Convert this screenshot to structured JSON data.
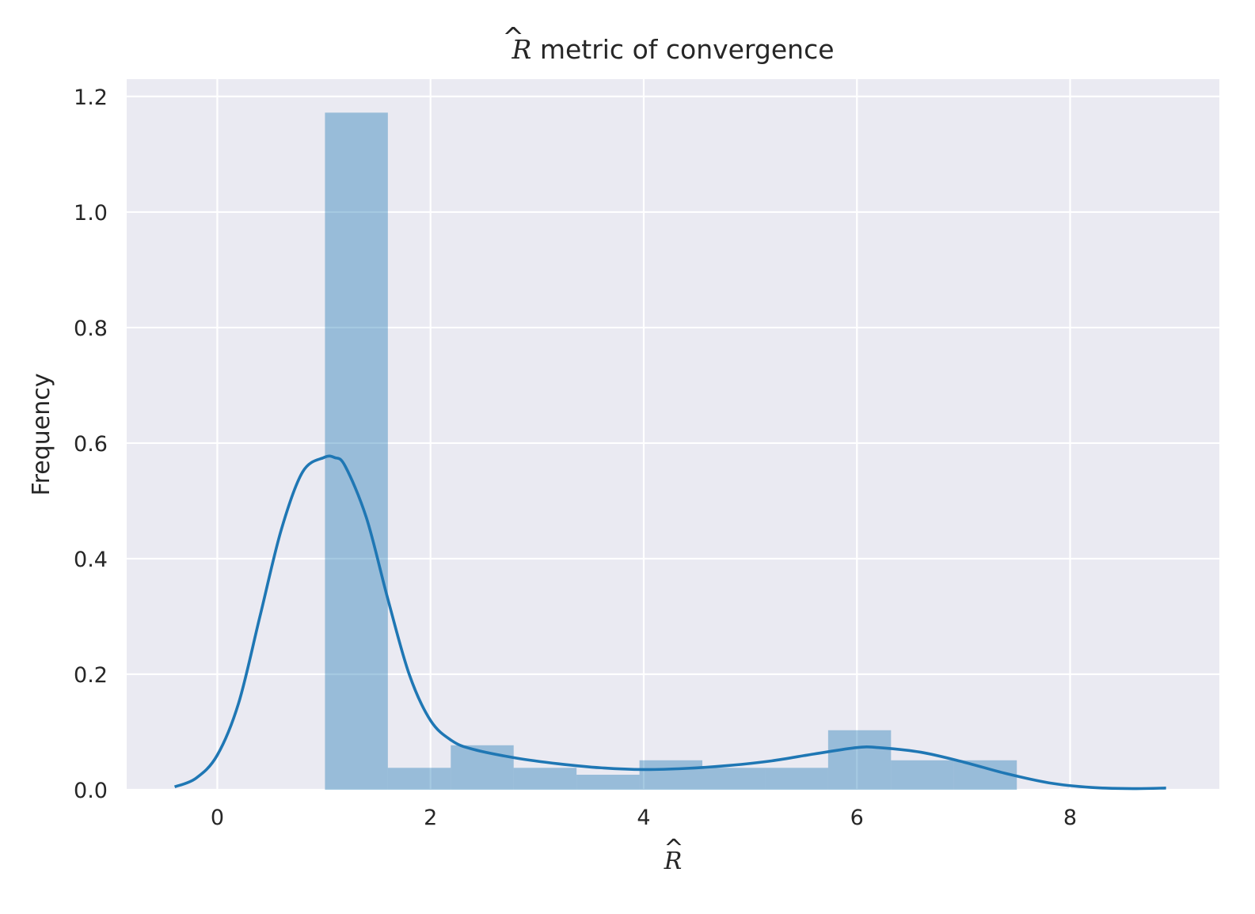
{
  "chart_data": {
    "type": "bar",
    "title_math": "R",
    "title_hat": "^",
    "title": "metric of convergence",
    "xlabel_math": "R",
    "xlabel_hat": "^",
    "ylabel": "Frequency",
    "xlim": [
      -0.85,
      9.4
    ],
    "ylim": [
      0,
      1.23
    ],
    "x_ticks": [
      0,
      2,
      4,
      6,
      8
    ],
    "y_ticks": [
      0.0,
      0.2,
      0.4,
      0.6,
      0.8,
      1.0,
      1.2
    ],
    "x_tick_labels": [
      "0",
      "2",
      "4",
      "6",
      "8"
    ],
    "y_tick_labels": [
      "0.0",
      "0.2",
      "0.4",
      "0.6",
      "0.8",
      "1.0",
      "1.2"
    ],
    "grid": true,
    "histogram": {
      "bin_edges": [
        1.01,
        1.6,
        2.19,
        2.78,
        3.37,
        3.96,
        4.55,
        5.14,
        5.73,
        6.32,
        6.91,
        7.5
      ],
      "values": [
        1.172,
        0.038,
        0.077,
        0.038,
        0.026,
        0.051,
        0.038,
        0.038,
        0.103,
        0.051,
        0.051
      ],
      "color": "#1f77b4",
      "opacity": 0.4
    },
    "kde": {
      "x": [
        -0.4,
        -0.2,
        0.0,
        0.2,
        0.4,
        0.6,
        0.8,
        1.0,
        1.1,
        1.2,
        1.4,
        1.6,
        1.8,
        2.0,
        2.2,
        2.4,
        2.8,
        3.2,
        3.6,
        4.0,
        4.4,
        4.8,
        5.2,
        5.6,
        6.0,
        6.2,
        6.6,
        7.0,
        7.4,
        7.8,
        8.2,
        8.6,
        8.9
      ],
      "y": [
        0.005,
        0.02,
        0.06,
        0.15,
        0.3,
        0.45,
        0.55,
        0.575,
        0.575,
        0.56,
        0.47,
        0.33,
        0.2,
        0.12,
        0.085,
        0.07,
        0.055,
        0.045,
        0.038,
        0.035,
        0.037,
        0.042,
        0.05,
        0.062,
        0.073,
        0.073,
        0.065,
        0.048,
        0.028,
        0.012,
        0.004,
        0.002,
        0.003
      ],
      "color": "#1f77b4"
    },
    "colors": {
      "plot_background": "#eaeaf2",
      "grid": "#ffffff",
      "text": "#262626"
    }
  }
}
